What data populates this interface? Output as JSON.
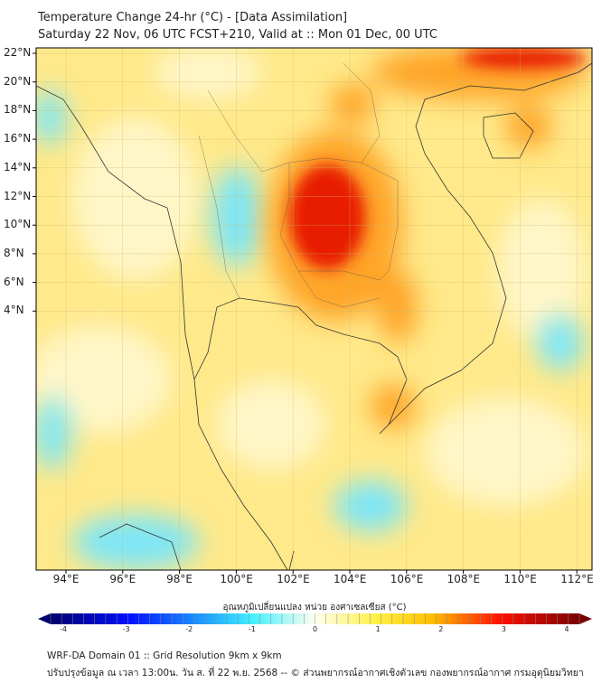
{
  "title": "Temperature Change 24-hr (°C) - [Data Assimilation]",
  "subtitle": "Saturday 22 Nov, 06 UTC FCST+210, Valid at :: Mon 01 Dec, 00 UTC",
  "map": {
    "lat_labels": [
      "22°N",
      "20°N",
      "18°N",
      "16°N",
      "14°N",
      "12°N",
      "10°N",
      "8°N",
      "6°N",
      "4°N"
    ],
    "lon_labels": [
      "94°E",
      "96°E",
      "98°E",
      "100°E",
      "102°E",
      "104°E",
      "106°E",
      "108°E",
      "110°E",
      "112°E"
    ],
    "colors": {
      "background": "#ffe98a",
      "warm": "#ffa428",
      "hot": "#e81c00",
      "cool": "#7ee6f6",
      "neutral": "#fff6c8"
    }
  },
  "colorbar": {
    "label": "อุณหภูมิเปลี่ยนแปลง หน่วย องศาเซลเซียส (°C)",
    "ticks": [
      "-4",
      "-3",
      "-2",
      "-1",
      "0",
      "1",
      "2",
      "3",
      "4"
    ],
    "min": -4,
    "max": 4
  },
  "footer": {
    "line1": "WRF-DA Domain 01 :: Grid Resolution 9km x 9km",
    "line2": "ปรับปรุงข้อมูล ณ เวลา 13:00น. วัน ส. ที่ 22 พ.ย. 2568 -- © ส่วนพยากรณ์อากาศเชิงตัวเลข กองพยากรณ์อากาศ กรมอุตุนิยมวิทยา"
  }
}
